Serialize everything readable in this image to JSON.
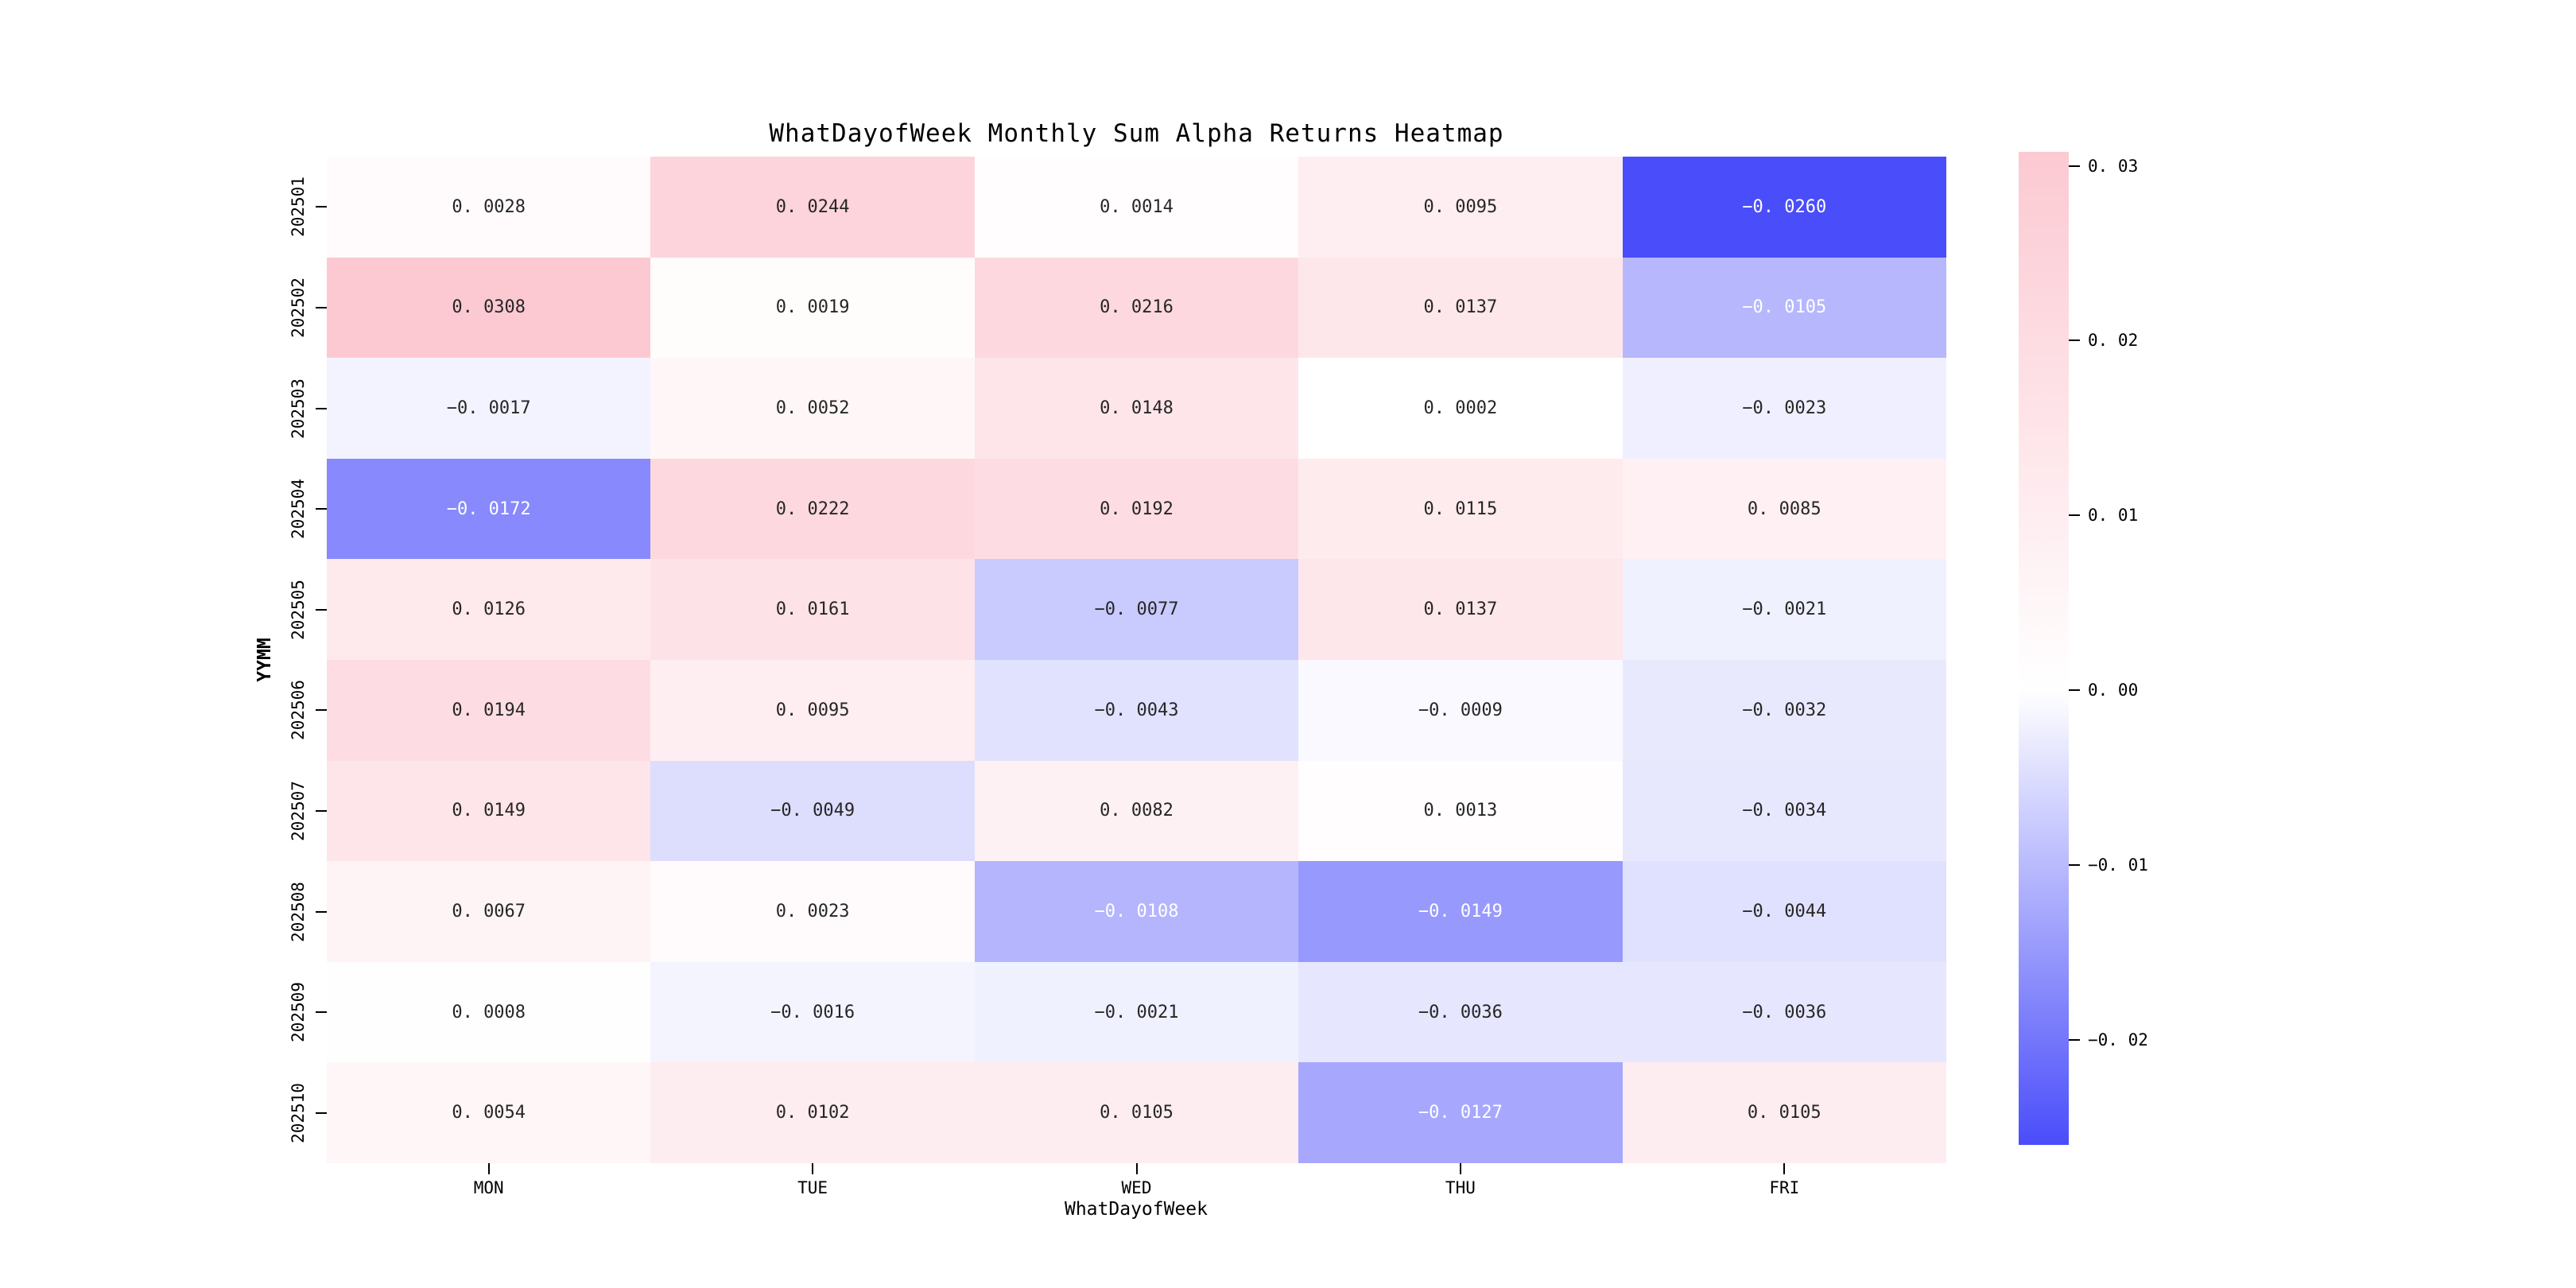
{
  "title": "WhatDayofWeek Monthly Sum Alpha Returns Heatmap",
  "chart_data": {
    "type": "heatmap",
    "xlabel": "WhatDayofWeek",
    "ylabel": "YYMM",
    "columns": [
      "MON",
      "TUE",
      "WED",
      "THU",
      "FRI"
    ],
    "rows": [
      "202501",
      "202502",
      "202503",
      "202504",
      "202505",
      "202506",
      "202507",
      "202508",
      "202509",
      "202510"
    ],
    "values": [
      [
        0.0028,
        0.0244,
        0.0014,
        0.0095,
        -0.026
      ],
      [
        0.0308,
        0.0019,
        0.0216,
        0.0137,
        -0.0105
      ],
      [
        -0.0017,
        0.0052,
        0.0148,
        0.0002,
        -0.0023
      ],
      [
        -0.0172,
        0.0222,
        0.0192,
        0.0115,
        0.0085
      ],
      [
        0.0126,
        0.0161,
        -0.0077,
        0.0137,
        -0.0021
      ],
      [
        0.0194,
        0.0095,
        -0.0043,
        -0.0009,
        -0.0032
      ],
      [
        0.0149,
        -0.0049,
        0.0082,
        0.0013,
        -0.0034
      ],
      [
        0.0067,
        0.0023,
        -0.0108,
        -0.0149,
        -0.0044
      ],
      [
        0.0008,
        -0.0016,
        -0.0021,
        -0.0036,
        -0.0036
      ],
      [
        0.0054,
        0.0102,
        0.0105,
        -0.0127,
        0.0105
      ]
    ],
    "value_decimals": 4,
    "vmin": -0.026,
    "vmax": 0.0308,
    "colorbar": {
      "tick_values": [
        0.03,
        0.02,
        0.01,
        0.0,
        -0.01,
        -0.02
      ],
      "tick_labels": [
        "0.03",
        "0.02",
        "0.01",
        "0.00",
        "-0.01",
        "-0.02"
      ],
      "position": "right"
    },
    "colors": {
      "positive_max": "#fcc9d2",
      "zero": "#ffffff",
      "negative_min": "#4a4dfa",
      "annotation_dark": "#262626",
      "annotation_light": "#ffffff",
      "axis_text": "#000000"
    },
    "grid": false,
    "legend": "colorbar"
  }
}
